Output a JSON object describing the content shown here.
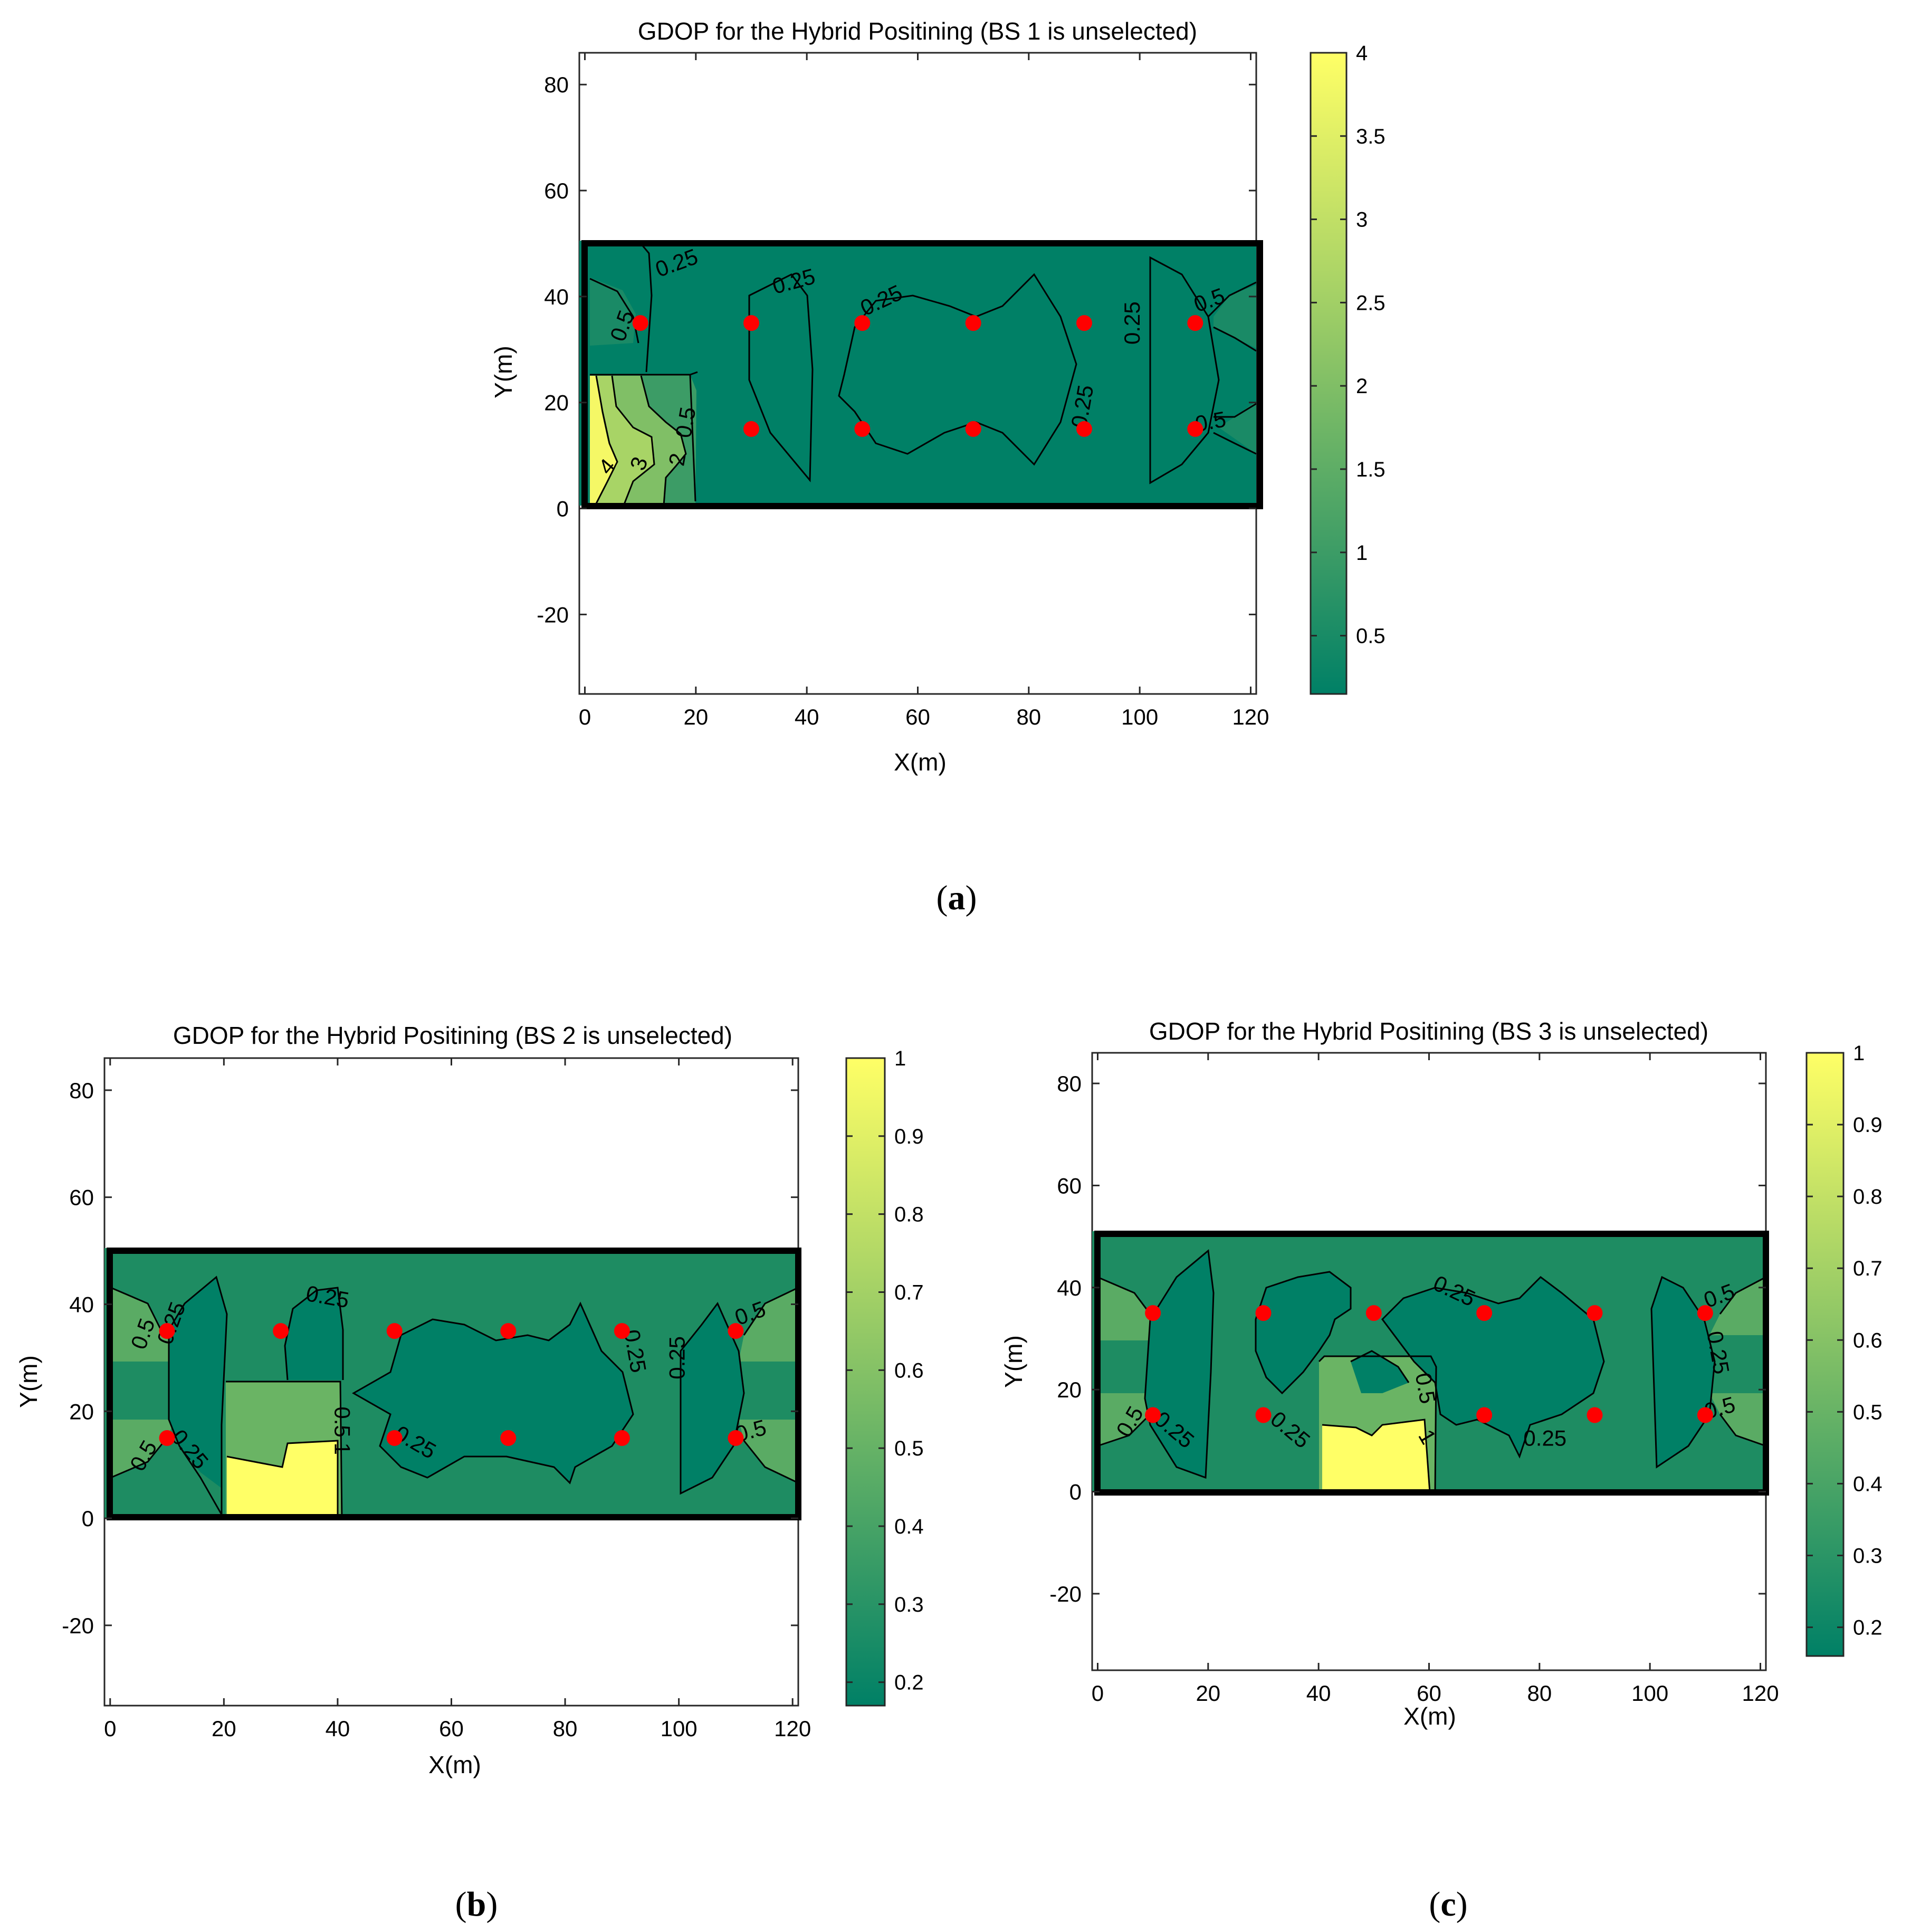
{
  "chart_data": [
    {
      "type": "contour",
      "title": "GDOP for the Hybrid Positining (BS 1 is unselected)",
      "xlabel": "X(m)",
      "ylabel": "Y(m)",
      "xlim": [
        0,
        120
      ],
      "ylim": [
        -35,
        86
      ],
      "xticks": [
        0,
        20,
        40,
        60,
        80,
        100,
        120
      ],
      "yticks": [
        -20,
        0,
        20,
        40,
        60,
        80
      ],
      "colorbar": {
        "min": 0.15,
        "max": 4,
        "ticks": [
          0.5,
          1,
          1.5,
          2,
          2.5,
          3,
          3.5,
          4
        ],
        "colormap": [
          "#008066",
          "#ffff66"
        ]
      },
      "region": {
        "x": [
          0,
          120
        ],
        "y": [
          0,
          50
        ]
      },
      "fill_color": "#008066",
      "base_stations": [
        [
          10,
          35
        ],
        [
          30,
          35
        ],
        [
          50,
          35
        ],
        [
          70,
          35
        ],
        [
          90,
          35
        ],
        [
          110,
          35
        ],
        [
          30,
          15
        ],
        [
          50,
          15
        ],
        [
          70,
          15
        ],
        [
          90,
          15
        ],
        [
          110,
          15
        ]
      ],
      "panel_label": {
        "open": "(",
        "letter": "a",
        "close": ")"
      },
      "contour_labels": [
        {
          "text": "0.25",
          "x": 17,
          "y": 45,
          "rot": -20
        },
        {
          "text": "0.25",
          "x": 38,
          "y": 41.5,
          "rot": -15
        },
        {
          "text": "0.25",
          "x": 54,
          "y": 38,
          "rot": -25
        },
        {
          "text": "0.25",
          "x": 100,
          "y": 35,
          "rot": -90
        },
        {
          "text": "0.25",
          "x": 91,
          "y": 19,
          "rot": -80
        },
        {
          "text": "0.5",
          "x": 8,
          "y": 34,
          "rot": -70
        },
        {
          "text": "0.5",
          "x": 113,
          "y": 38,
          "rot": -20
        },
        {
          "text": "0.5",
          "x": 113,
          "y": 15,
          "rot": -10
        },
        {
          "text": "0.5",
          "x": 19.5,
          "y": 16,
          "rot": -80
        },
        {
          "text": "2",
          "x": 18,
          "y": 9,
          "rot": -80
        },
        {
          "text": "3",
          "x": 11,
          "y": 8,
          "rot": -70
        },
        {
          "text": "4",
          "x": 5,
          "y": 7,
          "rot": -50
        }
      ]
    },
    {
      "type": "contour",
      "title": "GDOP for the Hybrid Positining (BS 2 is unselected)",
      "xlabel": "X(m)",
      "ylabel": "Y(m)",
      "xlim": [
        0,
        120
      ],
      "ylim": [
        -35,
        86
      ],
      "xticks": [
        0,
        20,
        40,
        60,
        80,
        100,
        120
      ],
      "yticks": [
        -20,
        0,
        20,
        40,
        60,
        80
      ],
      "colorbar": {
        "min": 0.17,
        "max": 1,
        "ticks": [
          0.2,
          0.3,
          0.4,
          0.5,
          0.6,
          0.7,
          0.8,
          0.9,
          1
        ],
        "colormap": [
          "#008066",
          "#ffff66"
        ]
      },
      "region": {
        "x": [
          0,
          120
        ],
        "y": [
          0,
          50
        ]
      },
      "fill_color": "#1e8c62",
      "base_stations": [
        [
          10,
          35
        ],
        [
          30,
          35
        ],
        [
          50,
          35
        ],
        [
          70,
          35
        ],
        [
          90,
          35
        ],
        [
          110,
          35
        ],
        [
          10,
          15
        ],
        [
          50,
          15
        ],
        [
          70,
          15
        ],
        [
          90,
          15
        ],
        [
          110,
          15
        ]
      ],
      "panel_label": {
        "open": "(",
        "letter": "b",
        "close": ")"
      },
      "contour_labels": [
        {
          "text": "0.25",
          "x": 38,
          "y": 40,
          "rot": 10
        },
        {
          "text": "0.25",
          "x": 12,
          "y": 36,
          "rot": -70
        },
        {
          "text": "0.25",
          "x": 13,
          "y": 12,
          "rot": 50
        },
        {
          "text": "0.25",
          "x": 53,
          "y": 13,
          "rot": 30
        },
        {
          "text": "0.25",
          "x": 91,
          "y": 31,
          "rot": 80
        },
        {
          "text": "0.25",
          "x": 101,
          "y": 30,
          "rot": -90
        },
        {
          "text": "0.5",
          "x": 7,
          "y": 34,
          "rot": -70
        },
        {
          "text": "0.5",
          "x": 7,
          "y": 11,
          "rot": -60
        },
        {
          "text": "0.5",
          "x": 113,
          "y": 37,
          "rot": -20
        },
        {
          "text": "0.5",
          "x": 113,
          "y": 15,
          "rot": -15
        },
        {
          "text": "0.5",
          "x": 39.5,
          "y": 18,
          "rot": 90
        },
        {
          "text": "1",
          "x": 39.5,
          "y": 13,
          "rot": 90
        }
      ]
    },
    {
      "type": "contour",
      "title": "GDOP for the Hybrid Positining (BS 3 is unselected)",
      "xlabel": "X(m)",
      "ylabel": "Y(m)",
      "xlim": [
        0,
        120
      ],
      "ylim": [
        -35,
        86
      ],
      "xticks": [
        0,
        20,
        40,
        60,
        80,
        100,
        120
      ],
      "yticks": [
        -20,
        0,
        20,
        40,
        60,
        80
      ],
      "colorbar": {
        "min": 0.16,
        "max": 1,
        "ticks": [
          0.2,
          0.3,
          0.4,
          0.5,
          0.6,
          0.7,
          0.8,
          0.9,
          1
        ],
        "colormap": [
          "#008066",
          "#ffff66"
        ]
      },
      "region": {
        "x": [
          0,
          120
        ],
        "y": [
          0,
          50
        ]
      },
      "fill_color": "#1e8c62",
      "base_stations": [
        [
          10,
          35
        ],
        [
          30,
          35
        ],
        [
          50,
          35
        ],
        [
          70,
          35
        ],
        [
          90,
          35
        ],
        [
          110,
          35
        ],
        [
          10,
          15
        ],
        [
          30,
          15
        ],
        [
          70,
          15
        ],
        [
          90,
          15
        ],
        [
          110,
          15
        ]
      ],
      "panel_label": {
        "open": "(",
        "letter": "c",
        "close": ")"
      },
      "contour_labels": [
        {
          "text": "0.25",
          "x": 64,
          "y": 38,
          "rot": 25
        },
        {
          "text": "0.25",
          "x": 34,
          "y": 11,
          "rot": 40
        },
        {
          "text": "0.25",
          "x": 13,
          "y": 11,
          "rot": 40
        },
        {
          "text": "0.25",
          "x": 81,
          "y": 9,
          "rot": 0
        },
        {
          "text": "0.25",
          "x": 111,
          "y": 27,
          "rot": 80
        },
        {
          "text": "0.5",
          "x": 7,
          "y": 13,
          "rot": -60
        },
        {
          "text": "0.5",
          "x": 113,
          "y": 37,
          "rot": -20
        },
        {
          "text": "0.5",
          "x": 113,
          "y": 15,
          "rot": -15
        },
        {
          "text": "0.5",
          "x": 58,
          "y": 20,
          "rot": 80
        },
        {
          "text": "1",
          "x": 58.5,
          "y": 10,
          "rot": 60
        }
      ]
    }
  ]
}
